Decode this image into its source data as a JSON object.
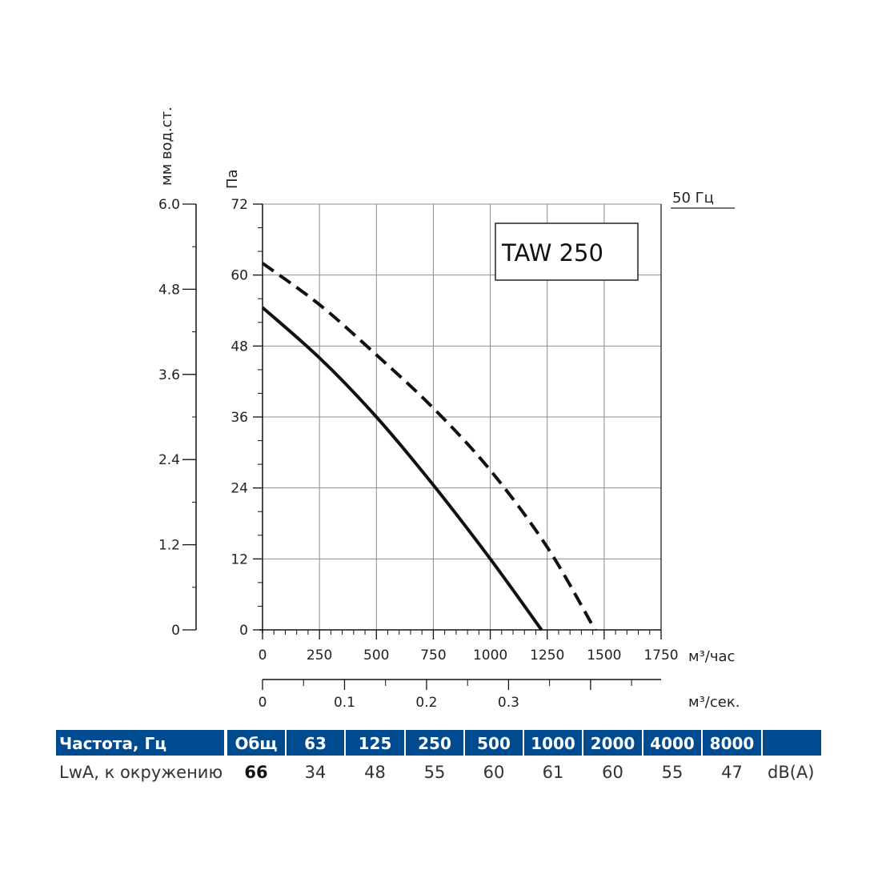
{
  "chart_data": {
    "type": "line",
    "model": "TAW 250",
    "frequency_label": "50 Гц",
    "x_axis": {
      "label": "м³/час",
      "range": [
        0,
        1750
      ],
      "major_ticks": [
        0,
        250,
        500,
        750,
        1000,
        1250,
        1500,
        1750
      ],
      "tick_labels": [
        "0",
        "250",
        "500",
        "750",
        "1000",
        "1250",
        "1500",
        "1750"
      ]
    },
    "x2_axis": {
      "label": "м³/сек.",
      "range": [
        0,
        0.486
      ],
      "major_ticks": [
        0,
        0.1,
        0.2,
        0.3
      ],
      "tick_labels": [
        "0",
        "0.1",
        "0.2",
        "0.3"
      ]
    },
    "y_axis": {
      "label": "Па",
      "range": [
        0,
        72
      ],
      "major_ticks": [
        0,
        12,
        24,
        36,
        48,
        60,
        72
      ],
      "tick_labels": [
        "0",
        "12",
        "24",
        "36",
        "48",
        "60",
        "72"
      ]
    },
    "y2_axis": {
      "label": "мм вод.ст.",
      "range": [
        0,
        6.0
      ],
      "major_ticks": [
        0,
        1.2,
        2.4,
        3.6,
        4.8,
        6.0
      ],
      "tick_labels": [
        "0",
        "1.2",
        "2.4",
        "3.6",
        "4.8",
        "6.0"
      ]
    },
    "grid": true,
    "series": [
      {
        "name": "solid",
        "style": "solid",
        "x": [
          0,
          250,
          500,
          750,
          1000,
          1225
        ],
        "y": [
          54.5,
          46,
          36,
          24.5,
          12,
          0
        ]
      },
      {
        "name": "dashed",
        "style": "dashed",
        "x": [
          0,
          250,
          500,
          750,
          1000,
          1250,
          1460
        ],
        "y": [
          62,
          55,
          46.5,
          37.5,
          27,
          14,
          0
        ]
      }
    ]
  },
  "table": {
    "header_label": "Частота, Гц",
    "columns": [
      "Общ",
      "63",
      "125",
      "250",
      "500",
      "1000",
      "2000",
      "4000",
      "8000",
      ""
    ],
    "row_label": "LwA, к окружению",
    "values": [
      "66",
      "34",
      "48",
      "55",
      "60",
      "61",
      "60",
      "55",
      "47"
    ],
    "unit": "dB(A)",
    "header_color": "#004a8f"
  }
}
